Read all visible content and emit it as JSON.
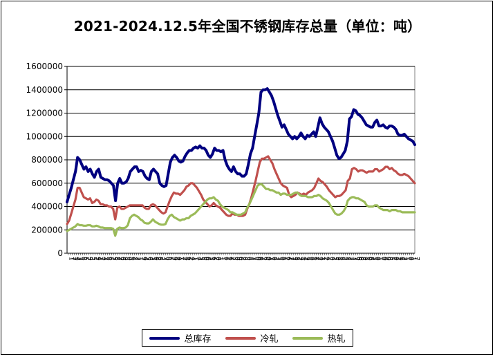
{
  "title": "2021-2024.12.5年全国不锈钢库存总量（单位：吨）",
  "chart_data": {
    "type": "line",
    "title": "2021-2024.12.5年全国不锈钢库存总量（单位：吨）",
    "ylim": [
      0,
      1600000
    ],
    "yticks": [
      "1600000",
      "1400000",
      "1200000",
      "1000000",
      "800000",
      "600000",
      "400000",
      "200000",
      "0"
    ],
    "grid": true,
    "legend_position": "bottom",
    "series": [
      {
        "name": "总库存",
        "color": "#000080",
        "values": [
          440000,
          500000,
          560000,
          630000,
          700000,
          820000,
          800000,
          760000,
          720000,
          740000,
          700000,
          720000,
          680000,
          650000,
          700000,
          720000,
          650000,
          640000,
          630000,
          630000,
          620000,
          600000,
          580000,
          450000,
          600000,
          640000,
          600000,
          600000,
          610000,
          640000,
          700000,
          720000,
          740000,
          740000,
          700000,
          710000,
          700000,
          660000,
          640000,
          630000,
          700000,
          720000,
          700000,
          680000,
          600000,
          580000,
          570000,
          580000,
          680000,
          780000,
          820000,
          840000,
          820000,
          790000,
          780000,
          790000,
          830000,
          860000,
          880000,
          880000,
          900000,
          910000,
          900000,
          920000,
          900000,
          900000,
          880000,
          840000,
          820000,
          850000,
          900000,
          880000,
          880000,
          870000,
          880000,
          800000,
          750000,
          720000,
          700000,
          740000,
          700000,
          680000,
          680000,
          660000,
          660000,
          680000,
          760000,
          850000,
          900000,
          1000000,
          1100000,
          1200000,
          1380000,
          1400000,
          1400000,
          1410000,
          1380000,
          1350000,
          1300000,
          1240000,
          1180000,
          1130000,
          1080000,
          1100000,
          1060000,
          1020000,
          1000000,
          980000,
          1000000,
          980000,
          1000000,
          1030000,
          1000000,
          980000,
          1010000,
          1000000,
          1020000,
          1040000,
          1000000,
          1080000,
          1160000,
          1110000,
          1080000,
          1060000,
          1040000,
          1000000,
          960000,
          900000,
          840000,
          810000,
          820000,
          850000,
          880000,
          960000,
          1150000,
          1170000,
          1230000,
          1220000,
          1190000,
          1180000,
          1160000,
          1130000,
          1100000,
          1090000,
          1080000,
          1080000,
          1120000,
          1140000,
          1090000,
          1090000,
          1100000,
          1080000,
          1070000,
          1090000,
          1090000,
          1080000,
          1060000,
          1020000,
          1010000,
          1010000,
          1020000,
          1000000,
          980000,
          970000,
          960000,
          930000
        ]
      },
      {
        "name": "冷轧",
        "color": "#C0504D",
        "values": [
          250000,
          280000,
          340000,
          400000,
          460000,
          560000,
          560000,
          520000,
          480000,
          470000,
          460000,
          470000,
          430000,
          440000,
          460000,
          450000,
          420000,
          420000,
          410000,
          410000,
          400000,
          400000,
          380000,
          290000,
          390000,
          400000,
          380000,
          380000,
          390000,
          400000,
          410000,
          410000,
          410000,
          410000,
          410000,
          410000,
          410000,
          390000,
          380000,
          380000,
          410000,
          420000,
          410000,
          390000,
          370000,
          350000,
          340000,
          350000,
          400000,
          450000,
          490000,
          520000,
          510000,
          510000,
          500000,
          520000,
          540000,
          570000,
          580000,
          600000,
          600000,
          580000,
          560000,
          530000,
          500000,
          460000,
          440000,
          420000,
          400000,
          410000,
          430000,
          410000,
          400000,
          390000,
          370000,
          350000,
          330000,
          320000,
          320000,
          340000,
          330000,
          330000,
          320000,
          320000,
          320000,
          330000,
          380000,
          420000,
          480000,
          550000,
          620000,
          700000,
          780000,
          810000,
          810000,
          820000,
          830000,
          800000,
          770000,
          720000,
          680000,
          640000,
          600000,
          580000,
          570000,
          560000,
          500000,
          480000,
          490000,
          500000,
          520000,
          510000,
          500000,
          510000,
          500000,
          520000,
          530000,
          540000,
          560000,
          600000,
          640000,
          620000,
          610000,
          590000,
          570000,
          540000,
          520000,
          500000,
          480000,
          490000,
          490000,
          500000,
          520000,
          540000,
          620000,
          640000,
          720000,
          730000,
          720000,
          700000,
          710000,
          710000,
          700000,
          690000,
          700000,
          700000,
          700000,
          720000,
          720000,
          700000,
          710000,
          720000,
          740000,
          740000,
          720000,
          730000,
          710000,
          700000,
          680000,
          670000,
          670000,
          680000,
          670000,
          660000,
          640000,
          620000,
          600000
        ]
      },
      {
        "name": "热轧",
        "color": "#9BBB59",
        "values": [
          190000,
          200000,
          210000,
          220000,
          230000,
          250000,
          240000,
          240000,
          235000,
          235000,
          240000,
          240000,
          230000,
          230000,
          235000,
          230000,
          220000,
          220000,
          215000,
          215000,
          215000,
          215000,
          210000,
          150000,
          210000,
          220000,
          215000,
          215000,
          220000,
          240000,
          300000,
          320000,
          330000,
          320000,
          310000,
          290000,
          280000,
          260000,
          255000,
          255000,
          270000,
          290000,
          270000,
          260000,
          250000,
          245000,
          245000,
          250000,
          290000,
          320000,
          330000,
          310000,
          300000,
          290000,
          280000,
          290000,
          290000,
          300000,
          300000,
          320000,
          330000,
          340000,
          360000,
          380000,
          400000,
          420000,
          440000,
          460000,
          470000,
          470000,
          480000,
          460000,
          450000,
          420000,
          400000,
          390000,
          380000,
          370000,
          350000,
          350000,
          340000,
          330000,
          330000,
          330000,
          340000,
          350000,
          390000,
          420000,
          460000,
          500000,
          540000,
          580000,
          590000,
          590000,
          570000,
          550000,
          550000,
          540000,
          540000,
          530000,
          520000,
          520000,
          500000,
          510000,
          510000,
          500000,
          500000,
          500000,
          510000,
          520000,
          520000,
          500000,
          490000,
          490000,
          490000,
          480000,
          480000,
          480000,
          490000,
          490000,
          500000,
          490000,
          470000,
          460000,
          450000,
          430000,
          400000,
          370000,
          340000,
          330000,
          330000,
          340000,
          360000,
          390000,
          450000,
          470000,
          480000,
          480000,
          470000,
          470000,
          460000,
          450000,
          440000,
          410000,
          400000,
          400000,
          400000,
          410000,
          410000,
          390000,
          380000,
          370000,
          370000,
          370000,
          360000,
          370000,
          370000,
          370000,
          360000,
          360000,
          350000,
          350000,
          350000,
          350000,
          350000,
          350000,
          350000
        ]
      }
    ],
    "x_tick_labels": [
      "1",
      "7",
      "1",
      "4",
      "3",
      "1",
      "8",
      "5",
      "2",
      "9",
      "3",
      "5",
      "1",
      "9",
      "2",
      "7",
      "4",
      "1",
      "8",
      "6",
      "1",
      "5",
      "8",
      "7",
      "2",
      "6",
      "9",
      "3",
      "0",
      "5",
      "4",
      "2",
      "2",
      "1",
      "1",
      "9",
      "4",
      "5",
      "6",
      "3",
      "1",
      "0",
      "2",
      "8",
      "2",
      "3",
      "7",
      "8",
      "5",
      "2",
      "9",
      "4",
      "0",
      "1",
      "7",
      "2",
      "4",
      "6",
      "2",
      "4",
      "1",
      "7",
      "4",
      "5",
      "5",
      "0",
      "0",
      "2",
      "1",
      "6",
      "2",
      "0",
      "1",
      "1",
      "1",
      "6",
      "1",
      "6",
      "2",
      "3",
      "0",
      "9",
      "0",
      "2",
      "8",
      "3",
      "6",
      "3",
      "2",
      "7",
      "0",
      "6",
      "4",
      "2",
      "6",
      "0",
      "4",
      "1",
      "0",
      "1",
      "3",
      "1",
      "0",
      "1",
      "2",
      "6",
      "2",
      "7",
      "1",
      "8",
      "1",
      "9",
      "1",
      "4",
      "9",
      "1",
      "0",
      "1",
      "6",
      "7",
      "2",
      "4",
      "1",
      "2",
      "4",
      "2",
      "0",
      "1",
      "5",
      "9",
      "1",
      "8",
      "3",
      "3",
      "2",
      "2",
      "1",
      "3",
      "7",
      "6",
      "6",
      "8",
      "9",
      "1",
      "0",
      "8",
      "2",
      "1",
      "0",
      "1",
      "1",
      "0",
      "4",
      "0",
      "8",
      "5",
      "1",
      "0",
      "1",
      "9",
      "7",
      "2",
      "1",
      "1",
      "0",
      "1",
      "1",
      "7"
    ]
  }
}
